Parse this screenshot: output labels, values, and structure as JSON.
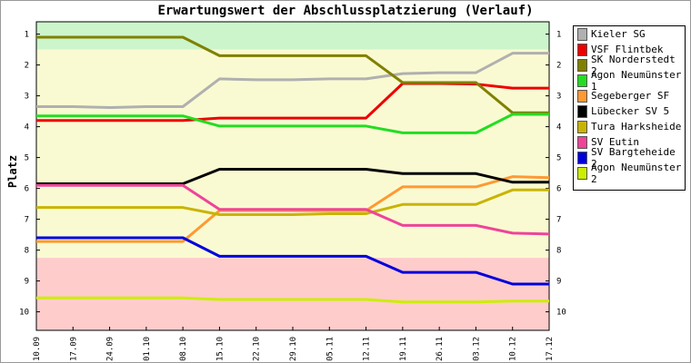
{
  "chart_data": {
    "type": "line",
    "title": "Erwartungswert der Abschlussplatzierung (Verlauf)",
    "ylabel": "Platz",
    "xlabel": "",
    "ylim": [
      0.6,
      10.6
    ],
    "y_ticks": [
      1,
      2,
      3,
      4,
      5,
      6,
      7,
      8,
      9,
      10
    ],
    "y_inverted": true,
    "categories": [
      "10.09",
      "17.09",
      "24.09",
      "01.10",
      "08.10",
      "15.10",
      "22.10",
      "29.10",
      "05.11",
      "12.11",
      "19.11",
      "26.11",
      "03.12",
      "10.12",
      "17.12"
    ],
    "zones": [
      {
        "from": 0.6,
        "to": 1.5,
        "color": "#ccf5cc"
      },
      {
        "from": 1.5,
        "to": 8.25,
        "color": "#fafad2"
      },
      {
        "from": 8.25,
        "to": 10.6,
        "color": "#ffcccc"
      }
    ],
    "series": [
      {
        "name": "Kieler SG",
        "color": "#b0b0b0",
        "values": [
          3.35,
          3.35,
          3.38,
          3.35,
          3.35,
          2.45,
          2.48,
          2.48,
          2.45,
          2.45,
          2.28,
          2.25,
          2.25,
          1.62,
          1.62
        ]
      },
      {
        "name": "VSF Flintbek",
        "color": "#ee0000",
        "values": [
          3.8,
          3.8,
          3.8,
          3.8,
          3.8,
          3.72,
          3.72,
          3.72,
          3.72,
          3.72,
          2.6,
          2.6,
          2.62,
          2.75,
          2.75
        ]
      },
      {
        "name": "SK Norderstedt 2",
        "color": "#808000",
        "values": [
          1.1,
          1.1,
          1.1,
          1.1,
          1.1,
          1.7,
          1.7,
          1.7,
          1.7,
          1.7,
          2.57,
          2.57,
          2.57,
          3.55,
          3.55
        ]
      },
      {
        "name": "Agon Neumünster 1",
        "color": "#22dd22",
        "values": [
          3.65,
          3.65,
          3.65,
          3.65,
          3.65,
          3.98,
          3.98,
          3.98,
          3.98,
          3.98,
          4.2,
          4.2,
          4.2,
          3.6,
          3.6
        ]
      },
      {
        "name": "Segeberger SF",
        "color": "#ff9933",
        "values": [
          7.72,
          7.72,
          7.72,
          7.72,
          7.72,
          6.72,
          6.72,
          6.72,
          6.72,
          6.72,
          5.95,
          5.95,
          5.95,
          5.62,
          5.65
        ]
      },
      {
        "name": "Lübecker SV 5",
        "color": "#000000",
        "values": [
          5.85,
          5.85,
          5.85,
          5.85,
          5.85,
          5.38,
          5.38,
          5.38,
          5.38,
          5.38,
          5.52,
          5.52,
          5.52,
          5.8,
          5.8
        ]
      },
      {
        "name": "Tura Harksheide",
        "color": "#c8b400",
        "values": [
          6.62,
          6.62,
          6.62,
          6.62,
          6.62,
          6.85,
          6.85,
          6.85,
          6.82,
          6.82,
          6.52,
          6.52,
          6.52,
          6.05,
          6.05
        ]
      },
      {
        "name": "SV Eutin",
        "color": "#ee4499",
        "values": [
          5.9,
          5.9,
          5.9,
          5.9,
          5.9,
          6.68,
          6.68,
          6.68,
          6.68,
          6.68,
          7.2,
          7.2,
          7.2,
          7.45,
          7.48
        ]
      },
      {
        "name": "SV Bargteheide 2",
        "color": "#0000dd",
        "values": [
          7.6,
          7.6,
          7.6,
          7.6,
          7.6,
          8.2,
          8.2,
          8.2,
          8.2,
          8.2,
          8.72,
          8.72,
          8.72,
          9.1,
          9.1
        ]
      },
      {
        "name": "Agon Neumünster 2",
        "color": "#ccee00",
        "values": [
          9.55,
          9.55,
          9.55,
          9.55,
          9.55,
          9.6,
          9.6,
          9.6,
          9.6,
          9.6,
          9.68,
          9.68,
          9.68,
          9.65,
          9.65
        ]
      }
    ]
  }
}
